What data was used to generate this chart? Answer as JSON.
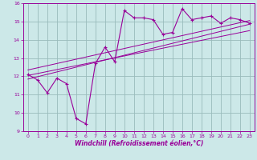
{
  "xlabel": "Windchill (Refroidissement éolien,°C)",
  "bg_color": "#cce8e8",
  "line_color": "#990099",
  "grid_color": "#99bbbb",
  "xlim": [
    -0.5,
    23.5
  ],
  "ylim": [
    9,
    16
  ],
  "xticks": [
    0,
    1,
    2,
    3,
    4,
    5,
    6,
    7,
    8,
    9,
    10,
    11,
    12,
    13,
    14,
    15,
    16,
    17,
    18,
    19,
    20,
    21,
    22,
    23
  ],
  "yticks": [
    9,
    10,
    11,
    12,
    13,
    14,
    15,
    16
  ],
  "data_x": [
    0,
    1,
    2,
    3,
    4,
    5,
    6,
    7,
    8,
    9,
    10,
    11,
    12,
    13,
    14,
    15,
    16,
    17,
    18,
    19,
    20,
    21,
    22,
    23
  ],
  "data_y": [
    12.1,
    11.8,
    11.1,
    11.9,
    11.6,
    9.7,
    9.4,
    12.7,
    13.6,
    12.8,
    15.6,
    15.2,
    15.2,
    15.1,
    14.3,
    14.4,
    15.7,
    15.1,
    15.2,
    15.3,
    14.9,
    15.2,
    15.1,
    14.9
  ],
  "reg_line1_x": [
    0,
    23
  ],
  "reg_line1_y": [
    11.85,
    14.85
  ],
  "reg_line2_x": [
    0,
    23
  ],
  "reg_line2_y": [
    12.35,
    15.05
  ],
  "reg_line3_x": [
    0,
    23
  ],
  "reg_line3_y": [
    12.05,
    14.5
  ]
}
